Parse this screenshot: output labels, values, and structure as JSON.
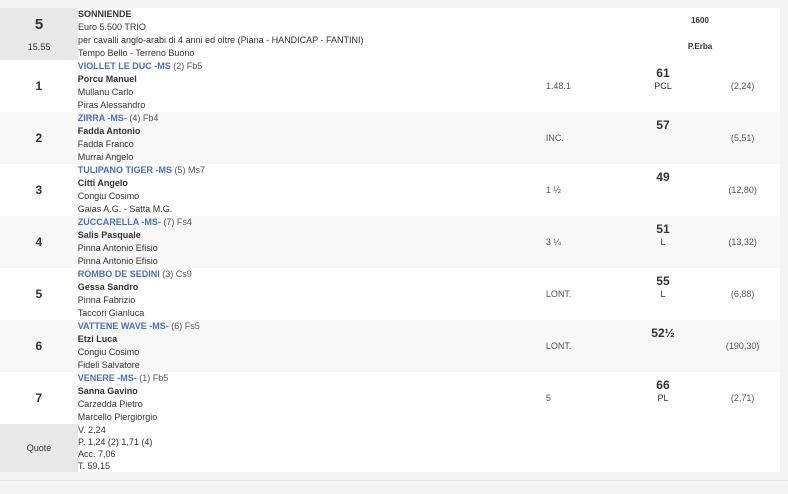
{
  "race": {
    "number": "5",
    "time": "15.55",
    "name": "SONNIENDE",
    "prize": "Euro 5.500 TRIO",
    "conditions": "per cavalli anglo-arabi di 4 anni ed oltre (Piana -  HANDICAP  - FANTINI)",
    "weather": "Tempo Bello - Terreno Buono",
    "distance": "1600",
    "track": "P.Erba"
  },
  "runners": [
    {
      "pos": "1",
      "horse": "VIOLLET LE DUC -MS",
      "extra": " (2) Fb5",
      "jockey": "Porcu Manuel",
      "trainer": "Mullanu Carlo",
      "owner": "Piras Alessandro",
      "dist": "1.48.1",
      "weight": "61",
      "weight_note": "PCL",
      "odds": "(2,24)"
    },
    {
      "pos": "2",
      "horse": "ZIRRA -MS-",
      "extra": " (4) Fb4",
      "jockey": "Fadda Antonio",
      "trainer": "Fadda Franco",
      "owner": "Murrai Angelo",
      "dist": "INC.",
      "weight": "57",
      "weight_note": "",
      "odds": "(5,51)"
    },
    {
      "pos": "3",
      "horse": "TULIPANO TIGER -MS",
      "extra": " (5) Ms7",
      "jockey": "Citti Angelo",
      "trainer": "Congiu Cosimo",
      "owner": "Gaias A.G. - Satta M.G.",
      "dist": "1 ½",
      "weight": "49",
      "weight_note": "",
      "odds": "(12,80)"
    },
    {
      "pos": "4",
      "horse": "ZUCCARELLA -MS-",
      "extra": " (7) Fs4",
      "jockey": "Salis Pasquale",
      "trainer": "Pinna Antonio Efisio",
      "owner": "Pinna Antonio Efisio",
      "dist": "3 ¼",
      "weight": "51",
      "weight_note": "L",
      "odds": "(13,32)"
    },
    {
      "pos": "5",
      "horse": "ROMBO DE SEDINI",
      "extra": " (3) Cs9",
      "jockey": "Gessa Sandro",
      "trainer": "Pinna Fabrizio",
      "owner": "Taccori Gianluca",
      "dist": "LONT.",
      "weight": "55",
      "weight_note": "L",
      "odds": "(6,88)"
    },
    {
      "pos": "6",
      "horse": "VATTENE WAVE -MS-",
      "extra": " (6) Fs5",
      "jockey": "Etzi Luca",
      "trainer": "Congiu Cosimo",
      "owner": "Fideli Salvatore",
      "dist": "LONT.",
      "weight": "52½",
      "weight_note": "",
      "odds": "(190,30)"
    },
    {
      "pos": "7",
      "horse": "VENERE -MS-",
      "extra": " (1) Fb5",
      "jockey": "Sanna Gavino",
      "trainer": "Carzedda Pietro",
      "owner": "Marcello Piergiorgio",
      "dist": "5",
      "weight": "66",
      "weight_note": "PL",
      "odds": "(2,71)"
    }
  ],
  "quote": {
    "label": "Quote",
    "lines": [
      "V. 2,24",
      "P. 1,24 (2)  1,71 (4)",
      "Acc. 7,06",
      "T. 59,15"
    ]
  }
}
